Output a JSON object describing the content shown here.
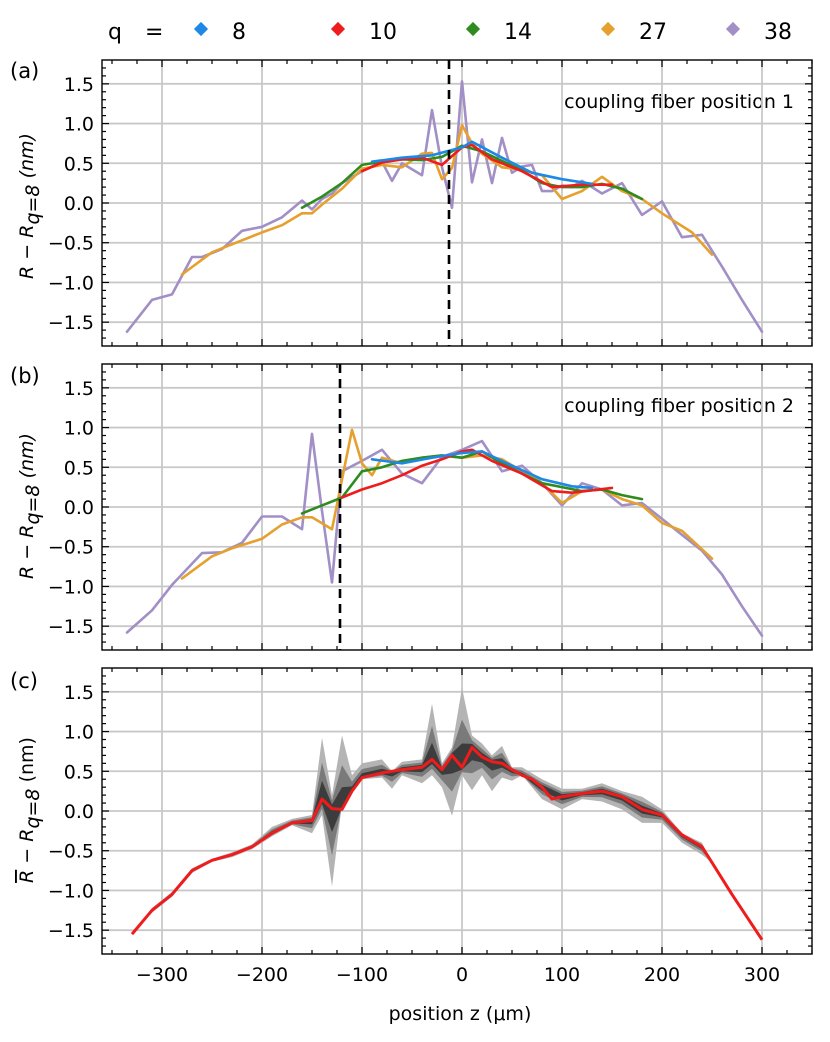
{
  "legend": {
    "label": "q",
    "equals": "=",
    "items": [
      {
        "q": "8",
        "color": "#1e88e5"
      },
      {
        "q": "10",
        "color": "#ee1c1c"
      },
      {
        "q": "14",
        "color": "#2e8b1e"
      },
      {
        "q": "27",
        "color": "#e5a02e"
      },
      {
        "q": "38",
        "color": "#a18fc6"
      }
    ]
  },
  "axes": {
    "xlabel": "position z (μm)",
    "xticks": [
      "−300",
      "−200",
      "−100",
      "0",
      "100",
      "200",
      "300"
    ],
    "yticks": [
      "1.5",
      "1.0",
      "0.5",
      "0.0",
      "−0.5",
      "−1.0",
      "−1.5"
    ]
  },
  "chart_data": [
    {
      "panel": "(a)",
      "type": "line",
      "annotation": "coupling fiber position 1",
      "ylabel": "R − R_q=8 (nm)",
      "xlim": [
        -360,
        350
      ],
      "ylim": [
        -1.8,
        1.8
      ],
      "vline_x": -13,
      "grid": true,
      "series": [
        {
          "name": "8",
          "x": [
            -90,
            -60,
            -30,
            0,
            10,
            40,
            70,
            100,
            130
          ],
          "y": [
            0.52,
            0.57,
            0.6,
            0.7,
            0.77,
            0.57,
            0.38,
            0.3,
            0.24
          ]
        },
        {
          "name": "10",
          "x": [
            -100,
            -80,
            -60,
            -40,
            -20,
            0,
            10,
            30,
            60,
            90,
            120,
            150
          ],
          "y": [
            0.4,
            0.51,
            0.55,
            0.57,
            0.48,
            0.7,
            0.73,
            0.55,
            0.4,
            0.2,
            0.23,
            0.23
          ]
        },
        {
          "name": "14",
          "x": [
            -160,
            -140,
            -120,
            -100,
            -80,
            -60,
            -40,
            -20,
            0,
            20,
            40,
            60,
            80,
            100,
            120,
            140,
            160,
            180
          ],
          "y": [
            -0.06,
            0.08,
            0.25,
            0.48,
            0.52,
            0.55,
            0.54,
            0.58,
            0.72,
            0.65,
            0.53,
            0.41,
            0.25,
            0.2,
            0.2,
            0.24,
            0.18,
            0.05
          ]
        },
        {
          "name": "27",
          "x": [
            -280,
            -250,
            -230,
            -200,
            -180,
            -160,
            -150,
            -140,
            -120,
            -100,
            -80,
            -60,
            -40,
            -30,
            -20,
            -10,
            0,
            10,
            20,
            40,
            60,
            80,
            100,
            120,
            140,
            160,
            180,
            200,
            230,
            250
          ],
          "y": [
            -0.9,
            -0.62,
            -0.52,
            -0.37,
            -0.28,
            -0.13,
            -0.13,
            -0.02,
            0.18,
            0.43,
            0.48,
            0.45,
            0.62,
            0.63,
            0.3,
            0.44,
            0.98,
            0.75,
            0.62,
            0.45,
            0.42,
            0.35,
            0.05,
            0.15,
            0.33,
            0.15,
            0.05,
            -0.13,
            -0.37,
            -0.65
          ]
        },
        {
          "name": "38",
          "x": [
            -335,
            -310,
            -290,
            -270,
            -260,
            -240,
            -220,
            -200,
            -180,
            -160,
            -150,
            -140,
            -130,
            -120,
            -100,
            -80,
            -70,
            -60,
            -40,
            -30,
            -20,
            -10,
            0,
            10,
            20,
            30,
            40,
            50,
            60,
            70,
            80,
            90,
            100,
            110,
            120,
            140,
            160,
            180,
            200,
            220,
            240,
            260,
            280,
            300
          ],
          "y": [
            -1.62,
            -1.22,
            -1.15,
            -0.68,
            -0.68,
            -0.58,
            -0.35,
            -0.3,
            -0.18,
            0.03,
            -0.08,
            0.05,
            0.12,
            0.25,
            0.4,
            0.52,
            0.28,
            0.5,
            0.35,
            1.17,
            0.45,
            -0.06,
            1.53,
            0.26,
            0.8,
            0.25,
            0.82,
            0.38,
            0.46,
            0.48,
            0.15,
            0.15,
            0.22,
            0.2,
            0.28,
            0.12,
            0.25,
            -0.15,
            0.02,
            -0.43,
            -0.4,
            -0.8,
            -1.22,
            -1.62
          ]
        }
      ]
    },
    {
      "panel": "(b)",
      "type": "line",
      "annotation": "coupling fiber position 2",
      "ylabel": "R − R_q=8 (nm)",
      "xlim": [
        -360,
        350
      ],
      "ylim": [
        -1.8,
        1.8
      ],
      "vline_x": -122,
      "grid": true,
      "series": [
        {
          "name": "8",
          "x": [
            -90,
            -60,
            -30,
            0,
            20,
            50,
            80,
            110,
            130
          ],
          "y": [
            0.6,
            0.55,
            0.62,
            0.68,
            0.7,
            0.52,
            0.35,
            0.26,
            0.24
          ]
        },
        {
          "name": "10",
          "x": [
            -120,
            -100,
            -80,
            -60,
            -40,
            -20,
            0,
            10,
            30,
            60,
            90,
            110,
            150
          ],
          "y": [
            0.12,
            0.22,
            0.3,
            0.4,
            0.52,
            0.6,
            0.7,
            0.72,
            0.58,
            0.42,
            0.2,
            0.18,
            0.24
          ]
        },
        {
          "name": "14",
          "x": [
            -160,
            -140,
            -120,
            -100,
            -80,
            -60,
            -40,
            -20,
            0,
            20,
            40,
            60,
            80,
            100,
            120,
            140,
            160,
            180
          ],
          "y": [
            -0.08,
            0.02,
            0.12,
            0.45,
            0.5,
            0.58,
            0.62,
            0.65,
            0.62,
            0.7,
            0.55,
            0.42,
            0.3,
            0.25,
            0.2,
            0.22,
            0.15,
            0.1
          ]
        },
        {
          "name": "27",
          "x": [
            -280,
            -250,
            -230,
            -200,
            -180,
            -160,
            -150,
            -130,
            -110,
            -100,
            -90,
            -80,
            -60,
            -40,
            -20,
            0,
            20,
            40,
            60,
            80,
            100,
            120,
            140,
            160,
            180,
            200,
            220,
            250
          ],
          "y": [
            -0.9,
            -0.62,
            -0.52,
            -0.4,
            -0.22,
            -0.13,
            -0.13,
            -0.28,
            0.97,
            0.55,
            0.4,
            0.62,
            0.55,
            0.62,
            0.65,
            0.62,
            0.65,
            0.6,
            0.45,
            0.3,
            0.05,
            0.2,
            0.22,
            0.1,
            0.02,
            -0.2,
            -0.3,
            -0.65
          ]
        },
        {
          "name": "38",
          "x": [
            -335,
            -310,
            -290,
            -260,
            -240,
            -220,
            -200,
            -180,
            -160,
            -150,
            -140,
            -130,
            -120,
            -100,
            -80,
            -60,
            -40,
            -20,
            0,
            20,
            40,
            60,
            80,
            100,
            120,
            140,
            160,
            180,
            200,
            220,
            240,
            260,
            280,
            300
          ],
          "y": [
            -1.58,
            -1.3,
            -0.98,
            -0.58,
            -0.57,
            -0.45,
            -0.12,
            -0.12,
            -0.28,
            0.92,
            -0.05,
            -0.95,
            0.45,
            0.58,
            0.72,
            0.42,
            0.3,
            0.63,
            0.72,
            0.83,
            0.45,
            0.52,
            0.3,
            0.02,
            0.3,
            0.22,
            0.02,
            0.05,
            -0.15,
            -0.35,
            -0.55,
            -0.85,
            -1.25,
            -1.62
          ]
        }
      ]
    },
    {
      "panel": "(c)",
      "type": "area",
      "ylabel": "R̄ − R_q=8 (nm)",
      "xlim": [
        -360,
        350
      ],
      "ylim": [
        -1.8,
        1.8
      ],
      "grid": true,
      "mean": {
        "color": "#ee1c1c",
        "x": [
          -330,
          -310,
          -290,
          -270,
          -250,
          -230,
          -210,
          -190,
          -170,
          -150,
          -140,
          -130,
          -120,
          -110,
          -100,
          -80,
          -60,
          -40,
          -30,
          -20,
          -10,
          0,
          10,
          20,
          30,
          40,
          50,
          60,
          70,
          80,
          90,
          100,
          120,
          140,
          160,
          180,
          200,
          220,
          240,
          250,
          270,
          300
        ],
        "y": [
          -1.55,
          -1.25,
          -1.05,
          -0.75,
          -0.62,
          -0.55,
          -0.45,
          -0.28,
          -0.15,
          -0.12,
          0.15,
          0.03,
          0.02,
          0.25,
          0.42,
          0.48,
          0.52,
          0.55,
          0.65,
          0.52,
          0.7,
          0.55,
          0.8,
          0.68,
          0.62,
          0.6,
          0.52,
          0.45,
          0.4,
          0.3,
          0.15,
          0.18,
          0.22,
          0.25,
          0.18,
          0.02,
          -0.05,
          -0.3,
          -0.45,
          -0.65,
          -1.05,
          -1.62
        ]
      },
      "spread": {
        "x": [
          -330,
          -310,
          -290,
          -270,
          -250,
          -230,
          -210,
          -190,
          -170,
          -150,
          -140,
          -130,
          -120,
          -110,
          -100,
          -80,
          -70,
          -60,
          -40,
          -30,
          -20,
          -10,
          0,
          10,
          20,
          30,
          40,
          50,
          60,
          80,
          100,
          120,
          140,
          160,
          180,
          200,
          220,
          240,
          250,
          270,
          300
        ],
        "upper": [
          -1.55,
          -1.22,
          -1.02,
          -0.72,
          -0.6,
          -0.52,
          -0.42,
          -0.2,
          -0.1,
          -0.05,
          0.92,
          0.2,
          0.95,
          0.45,
          0.6,
          0.65,
          0.5,
          0.62,
          0.65,
          1.35,
          0.6,
          0.8,
          1.55,
          0.95,
          0.85,
          0.7,
          0.82,
          0.55,
          0.55,
          0.4,
          0.28,
          0.28,
          0.35,
          0.25,
          0.18,
          0.02,
          -0.28,
          -0.4,
          -0.65,
          -1.05,
          -1.62
        ],
        "lower": [
          -1.55,
          -1.28,
          -1.08,
          -0.78,
          -0.64,
          -0.58,
          -0.48,
          -0.32,
          -0.18,
          -0.28,
          -0.05,
          -0.95,
          0.1,
          0.25,
          0.4,
          0.42,
          0.28,
          0.45,
          0.35,
          0.45,
          0.3,
          -0.06,
          0.45,
          0.26,
          0.45,
          0.25,
          0.42,
          0.38,
          0.45,
          0.15,
          0.02,
          0.15,
          0.12,
          0.02,
          -0.15,
          -0.15,
          -0.4,
          -0.55,
          -0.65,
          -1.05,
          -1.62
        ]
      }
    }
  ]
}
